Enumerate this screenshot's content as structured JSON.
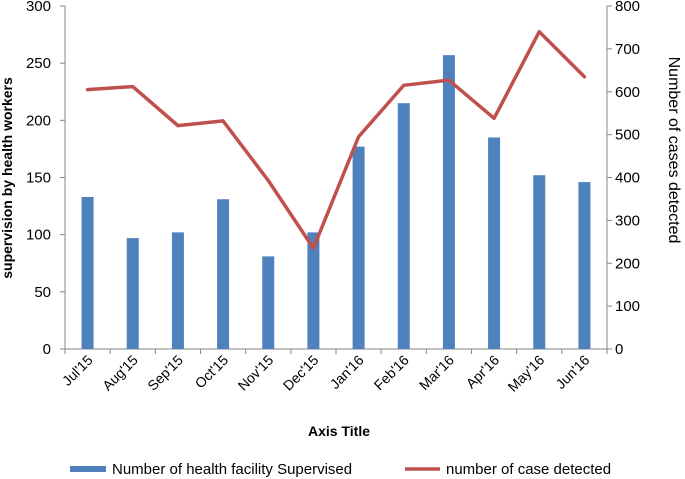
{
  "chart_data": {
    "type": "bar+line",
    "categories": [
      "Jul'15",
      "Aug'15",
      "Sep'15",
      "Oct'15",
      "Nov'15",
      "Dec'15",
      "Jan'16",
      "Feb'16",
      "Mar'16",
      "Apr'16",
      "May'16",
      "Jun'16"
    ],
    "series": [
      {
        "name": "Number of health facility Supervised",
        "type": "bar",
        "axis": "left",
        "color": "#4f81bd",
        "values": [
          133,
          97,
          102,
          131,
          81,
          102,
          177,
          215,
          257,
          185,
          152,
          146
        ]
      },
      {
        "name": "number of case detected",
        "type": "line",
        "axis": "right",
        "color": "#c0504d",
        "values": [
          605,
          612,
          521,
          532,
          393,
          235,
          495,
          615,
          627,
          538,
          740,
          635
        ]
      }
    ],
    "xlabel": "Axis Title",
    "ylabel": "supervision by health workers",
    "y2label": "Number of cases detected",
    "ylim": [
      0,
      300
    ],
    "y2lim": [
      0,
      800
    ],
    "yticks": [
      0,
      50,
      100,
      150,
      200,
      250,
      300
    ],
    "y2ticks": [
      0,
      100,
      200,
      300,
      400,
      500,
      600,
      700,
      800
    ],
    "grid": false,
    "legend_position": "bottom"
  }
}
